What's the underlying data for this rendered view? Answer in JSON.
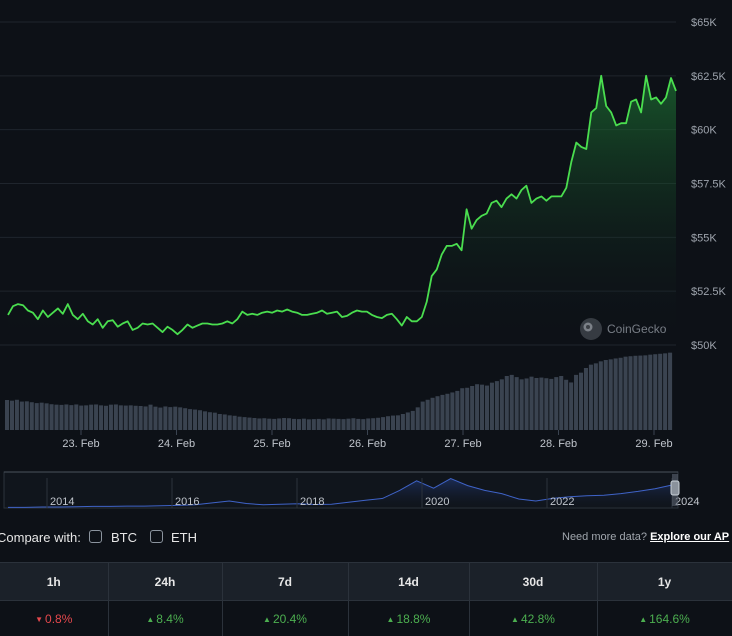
{
  "chart_data": {
    "type": "area",
    "x_tick_labels": [
      "23. Feb",
      "24. Feb",
      "25. Feb",
      "26. Feb",
      "27. Feb",
      "28. Feb",
      "29. Feb"
    ],
    "y_tick_labels": [
      "$65K",
      "$62.5K",
      "$60K",
      "$57.5K",
      "$55K",
      "$52.5K",
      "$50K"
    ],
    "ylim": [
      50000,
      65000
    ],
    "grid": true,
    "price_series": [
      51400,
      51800,
      51900,
      51850,
      51600,
      51500,
      51200,
      51600,
      51300,
      51500,
      51700,
      51450,
      51900,
      51400,
      51200,
      51450,
      51100,
      50950,
      51200,
      50800,
      51100,
      51150,
      50850,
      51000,
      51100,
      50700,
      50800,
      51000,
      50950,
      51000,
      50800,
      50600,
      50850,
      50700,
      50500,
      50700,
      50950,
      50800,
      50900,
      51000,
      51000,
      50950,
      50950,
      51000,
      51100,
      51000,
      51200,
      51550,
      51400,
      51450,
      51400,
      51500,
      51550,
      51500,
      51600,
      51550,
      51650,
      51550,
      51500,
      51400,
      51400,
      51450,
      51500,
      51600,
      51450,
      51500,
      51550,
      51300,
      51350,
      51500,
      51600,
      51550,
      51550,
      51400,
      51300,
      51250,
      51400,
      51450,
      51200,
      50900,
      51300,
      51100,
      51100,
      51300,
      52000,
      53200,
      53500,
      54200,
      54600,
      54600,
      54700,
      54400,
      56300,
      55400,
      55800,
      56000,
      56100,
      56600,
      56700,
      56400,
      56800,
      57000,
      56800,
      57200,
      57400,
      56600,
      56800,
      56900,
      56700,
      56900,
      56900,
      56900,
      57300,
      58500,
      59400,
      59200,
      59100,
      60800,
      61000,
      62500,
      61100,
      60800,
      60200,
      60300,
      60300,
      61300,
      61400,
      60800,
      62500,
      61400,
      61500,
      61200,
      61500,
      62400,
      61800
    ],
    "volume_series": [
      13.5,
      13.2,
      13.6,
      12.8,
      12.9,
      12.5,
      12.1,
      12.3,
      12.0,
      11.6,
      11.4,
      11.3,
      11.5,
      11.2,
      11.5,
      11.0,
      11.1,
      11.4,
      11.5,
      11.1,
      10.9,
      11.4,
      11.5,
      11.1,
      11.0,
      11.1,
      10.9,
      10.8,
      10.6,
      11.4,
      10.5,
      10.1,
      10.6,
      10.3,
      10.5,
      10.2,
      9.8,
      9.4,
      9.2,
      8.9,
      8.4,
      8.0,
      7.8,
      7.2,
      7.0,
      6.6,
      6.4,
      6.0,
      5.8,
      5.6,
      5.4,
      5.2,
      5.3,
      5.1,
      5.0,
      5.2,
      5.4,
      5.3,
      5.0,
      4.9,
      5.1,
      4.8,
      4.9,
      5.0,
      4.8,
      5.2,
      5.1,
      5.0,
      4.9,
      5.1,
      5.3,
      5.0,
      4.9,
      5.2,
      5.3,
      5.5,
      5.8,
      6.2,
      6.5,
      6.6,
      7.2,
      7.9,
      8.6,
      10.2,
      12.8,
      13.6,
      14.5,
      15.2,
      15.8,
      16.3,
      16.9,
      17.6,
      18.8,
      19.0,
      19.8,
      20.6,
      20.4,
      20.0,
      21.3,
      22.0,
      22.8,
      24.3,
      24.8,
      23.8,
      22.8,
      23.2,
      24.0,
      23.4,
      23.6,
      23.3,
      23.0,
      23.8,
      24.3,
      22.6,
      21.4,
      24.8,
      25.8,
      27.9,
      29.4,
      30.0,
      30.9,
      31.5,
      31.8,
      32.2,
      32.5,
      33.0,
      33.2,
      33.4,
      33.5,
      33.6,
      33.9,
      34.1,
      34.3,
      34.5,
      34.8
    ],
    "navigator": {
      "x_tick_labels": [
        "2014",
        "2016",
        "2018",
        "2020",
        "2022",
        "2024"
      ]
    }
  },
  "colors": {
    "price_line": "#4ade4f",
    "volume_bars": "#3a4350",
    "navigator_line": "#3f63c8",
    "up": "#4caf50",
    "down": "#e5484d"
  },
  "watermark": {
    "icon": "coingecko-gecko-icon",
    "text": "CoinGecko"
  },
  "compare": {
    "label": "Compare with:",
    "options": [
      {
        "label": "BTC",
        "checked": false
      },
      {
        "label": "ETH",
        "checked": false
      }
    ]
  },
  "need_more": {
    "text": "Need more data?",
    "link": "Explore our AP"
  },
  "performance": {
    "headers": [
      "1h",
      "24h",
      "7d",
      "14d",
      "30d",
      "1y"
    ],
    "values": [
      {
        "text": "0.8%",
        "direction": "down"
      },
      {
        "text": "8.4%",
        "direction": "up"
      },
      {
        "text": "20.4%",
        "direction": "up"
      },
      {
        "text": "18.8%",
        "direction": "up"
      },
      {
        "text": "42.8%",
        "direction": "up"
      },
      {
        "text": "164.6%",
        "direction": "up"
      }
    ]
  }
}
